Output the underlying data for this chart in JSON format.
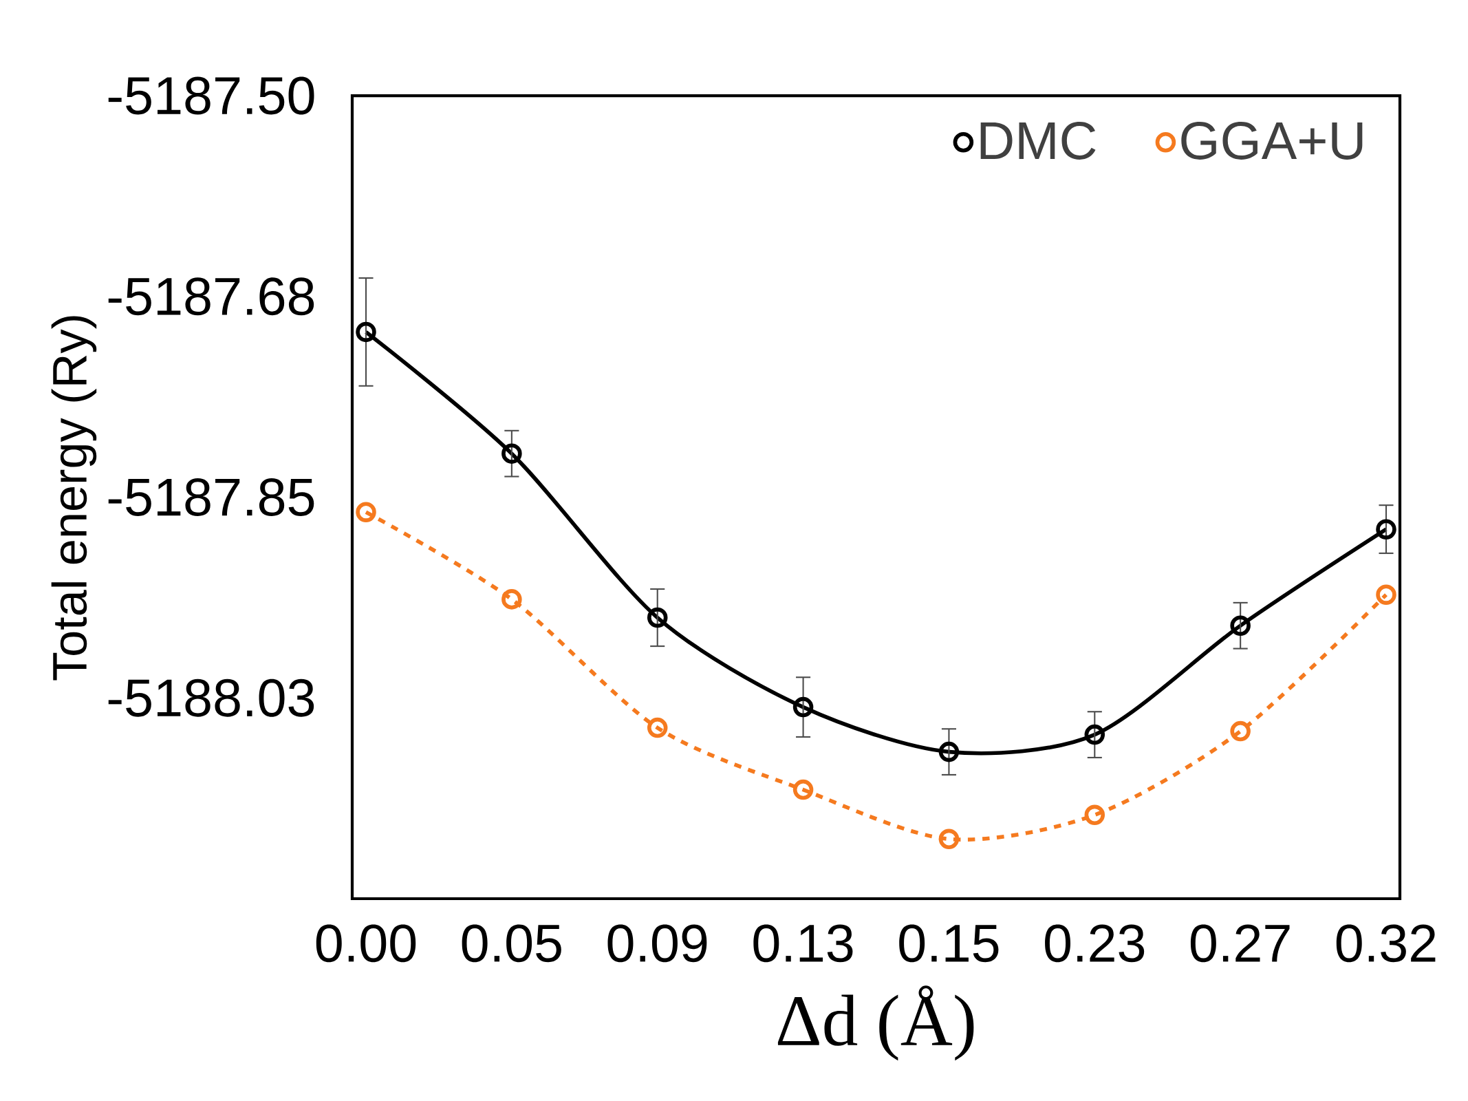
{
  "chart_data": {
    "type": "line",
    "xlabel": "Δd (Å)",
    "ylabel": "Total energy (Ry)",
    "categories": [
      "0.00",
      "0.05",
      "0.09",
      "0.13",
      "0.15",
      "0.23",
      "0.27",
      "0.32"
    ],
    "ylim": [
      -5188.2,
      -5187.5
    ],
    "yticks": [
      {
        "value": -5187.5,
        "label": "-5187.50"
      },
      {
        "value": -5187.675,
        "label": "-5187.68"
      },
      {
        "value": -5187.85,
        "label": "-5187.85"
      },
      {
        "value": -5188.025,
        "label": "-5188.03"
      }
    ],
    "series": [
      {
        "name": "DMC",
        "color": "#000000",
        "line_style": "solid",
        "values": [
          -5187.706,
          -5187.812,
          -5187.955,
          -5188.033,
          -5188.072,
          -5188.057,
          -5187.962,
          -5187.878
        ],
        "errors": [
          0.047,
          0.02,
          0.025,
          0.026,
          0.02,
          0.02,
          0.02,
          0.021
        ]
      },
      {
        "name": "GGA+U",
        "color": "#f57a1f",
        "line_style": "dashed",
        "values": [
          -5187.863,
          -5187.939,
          -5188.051,
          -5188.105,
          -5188.148,
          -5188.127,
          -5188.054,
          -5187.935
        ]
      }
    ],
    "marker": "circle",
    "grid": false,
    "legend": "top right"
  }
}
